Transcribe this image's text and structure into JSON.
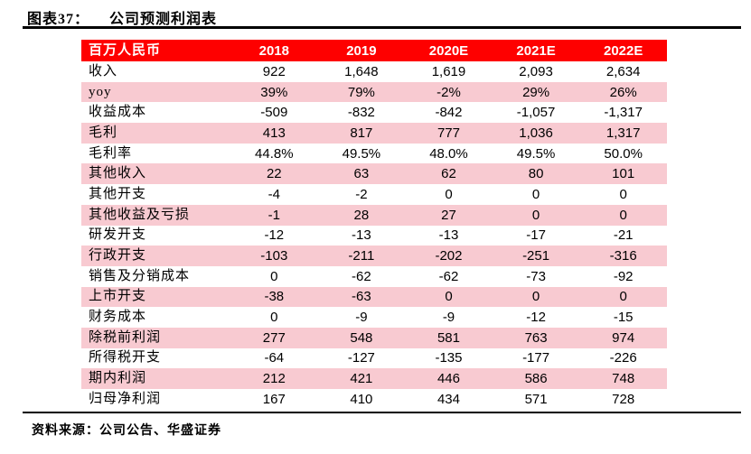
{
  "figure": {
    "label": "图表37：",
    "title": "公司预测利润表"
  },
  "table": {
    "header": [
      "百万人民币",
      "2018",
      "2019",
      "2020E",
      "2021E",
      "2022E"
    ],
    "rows": [
      {
        "label": "收入",
        "values": [
          "922",
          "1,648",
          "1,619",
          "2,093",
          "2,634"
        ]
      },
      {
        "label": "yoy",
        "values": [
          "39%",
          "79%",
          "-2%",
          "29%",
          "26%"
        ]
      },
      {
        "label": "收益成本",
        "values": [
          "-509",
          "-832",
          "-842",
          "-1,057",
          "-1,317"
        ]
      },
      {
        "label": "毛利",
        "values": [
          "413",
          "817",
          "777",
          "1,036",
          "1,317"
        ]
      },
      {
        "label": "毛利率",
        "values": [
          "44.8%",
          "49.5%",
          "48.0%",
          "49.5%",
          "50.0%"
        ]
      },
      {
        "label": "其他收入",
        "values": [
          "22",
          "63",
          "62",
          "80",
          "101"
        ]
      },
      {
        "label": "其他开支",
        "values": [
          "-4",
          "-2",
          "0",
          "0",
          "0"
        ]
      },
      {
        "label": "其他收益及亏损",
        "values": [
          "-1",
          "28",
          "27",
          "0",
          "0"
        ]
      },
      {
        "label": "研发开支",
        "values": [
          "-12",
          "-13",
          "-13",
          "-17",
          "-21"
        ]
      },
      {
        "label": "行政开支",
        "values": [
          "-103",
          "-211",
          "-202",
          "-251",
          "-316"
        ]
      },
      {
        "label": "销售及分销成本",
        "values": [
          "0",
          "-62",
          "-62",
          "-73",
          "-92"
        ]
      },
      {
        "label": "上市开支",
        "values": [
          "-38",
          "-63",
          "0",
          "0",
          "0"
        ]
      },
      {
        "label": "财务成本",
        "values": [
          "0",
          "-9",
          "-9",
          "-12",
          "-15"
        ]
      },
      {
        "label": "除税前利润",
        "values": [
          "277",
          "548",
          "581",
          "763",
          "974"
        ]
      },
      {
        "label": "所得税开支",
        "values": [
          "-64",
          "-127",
          "-135",
          "-177",
          "-226"
        ]
      },
      {
        "label": "期内利润",
        "values": [
          "212",
          "421",
          "446",
          "586",
          "748"
        ]
      },
      {
        "label": "归母净利润",
        "values": [
          "167",
          "410",
          "434",
          "571",
          "728"
        ]
      }
    ]
  },
  "source": "资料来源：公司公告、华盛证券",
  "colors": {
    "header_bg": "#fe0000",
    "header_text": "#ffffff",
    "stripe_bg": "#f8cad1",
    "rule": "#000000",
    "text": "#000000",
    "page_bg": "#ffffff"
  }
}
